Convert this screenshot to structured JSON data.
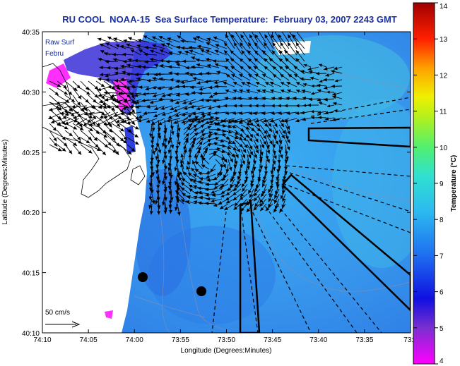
{
  "title": "RU COOL  NOAA-15  Sea Surface Temperature:  February 03, 2007 2243 GMT",
  "legend_text_line1": "Raw Surf",
  "legend_text_line2": "Febru",
  "scale_label": "50 cm/s",
  "x_axis": {
    "label": "Longitude (Degrees:Minutes)",
    "ticks": [
      "74:10",
      "74:05",
      "74:00",
      "73:55",
      "73:50",
      "73:45",
      "73:40",
      "73:35",
      "73:3"
    ]
  },
  "y_axis": {
    "label": "Latitude (Degrees:Minutes)",
    "ticks": [
      "40:35",
      "40:30",
      "40:25",
      "40:20",
      "40:15",
      "40:10"
    ]
  },
  "colorbar": {
    "label": "Temperature (°C)",
    "ticks": [
      "14",
      "13",
      "12",
      "11",
      "10",
      "9",
      "8",
      "7",
      "6",
      "5",
      "4"
    ],
    "range": [
      4,
      14
    ]
  },
  "colors": {
    "water": "#3aa0f0",
    "land": "#ffffff",
    "title": "#1a2fa0"
  }
}
